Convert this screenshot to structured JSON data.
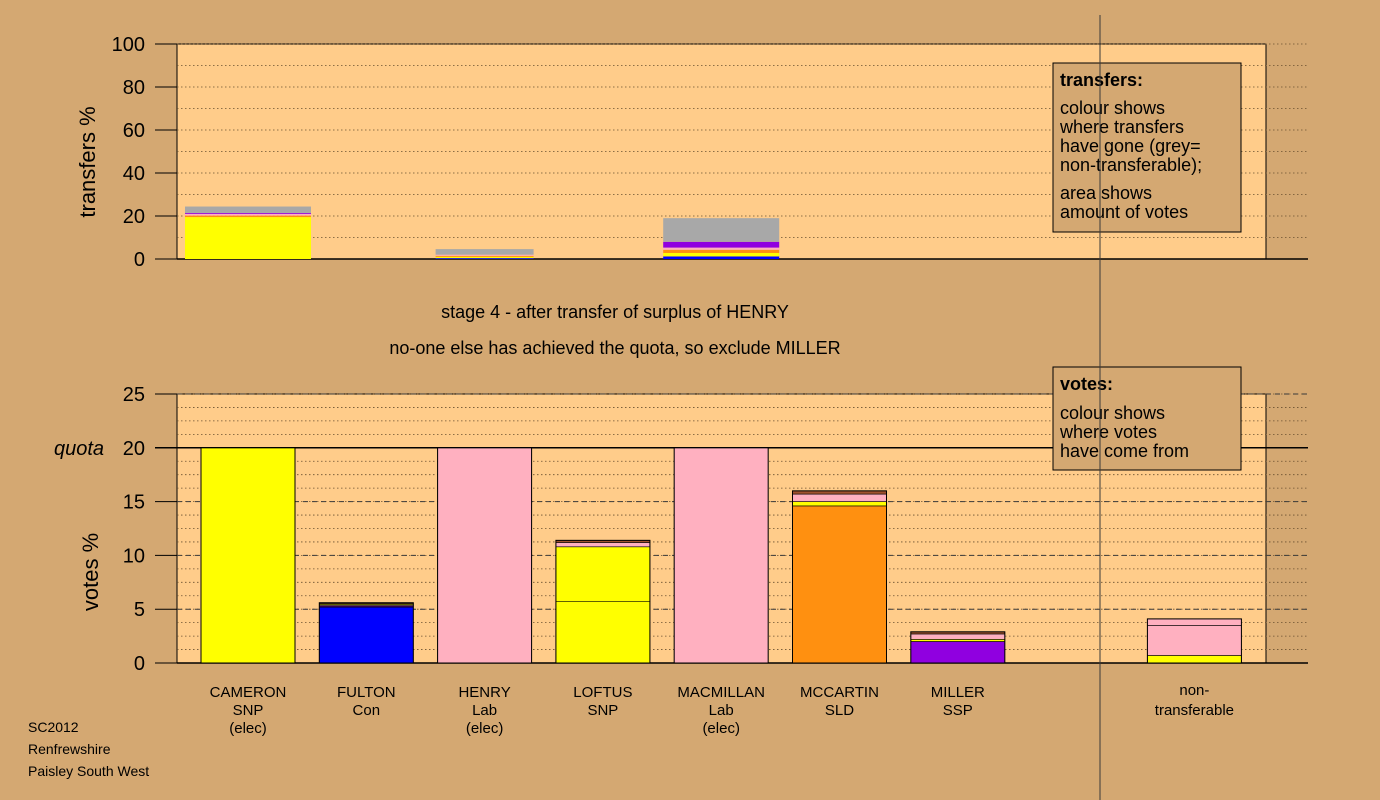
{
  "chart_data": [
    {
      "type": "bar",
      "title": "",
      "ylabel": "transfers %",
      "ylim": [
        0,
        100
      ],
      "yticks": [
        0,
        20,
        40,
        60,
        80,
        100
      ],
      "grid": true,
      "legend_placement": "top-right",
      "legend": {
        "heading": "transfers:",
        "lines1": [
          "colour shows",
          "where transfers",
          "have gone (grey=",
          "non-transferable);"
        ],
        "lines2": [
          "area shows",
          "amount of votes"
        ]
      },
      "bars": [
        {
          "slot": 0,
          "segments": [
            {
              "party": "SNP",
              "value": 19.5
            },
            {
              "party": "SLD",
              "value": 0.7
            },
            {
              "party": "Lab",
              "value": 0.8
            },
            {
              "party": "SSP",
              "value": 0.4
            },
            {
              "party": "non-transferable",
              "value": 3.0
            }
          ]
        },
        {
          "slot": 2,
          "segments": [
            {
              "party": "Con",
              "value": 0.4
            },
            {
              "party": "SNP",
              "value": 0.6
            },
            {
              "party": "SLD",
              "value": 0.5
            },
            {
              "party": "Lab",
              "value": 0.5
            },
            {
              "party": "non-transferable",
              "value": 2.6
            }
          ]
        },
        {
          "slot": 4,
          "segments": [
            {
              "party": "Con",
              "value": 1.2
            },
            {
              "party": "SNP",
              "value": 1.6
            },
            {
              "party": "SLD",
              "value": 1.5
            },
            {
              "party": "Lab",
              "value": 1.0
            },
            {
              "party": "SSP",
              "value": 2.7
            },
            {
              "party": "non-transferable",
              "value": 11.0
            }
          ]
        }
      ]
    },
    {
      "type": "bar",
      "title": "",
      "ylabel": "votes %",
      "ylim": [
        0,
        25
      ],
      "yticks": [
        0,
        5,
        10,
        15,
        20,
        25
      ],
      "quota": 20,
      "quota_label": "quota",
      "grid": true,
      "legend_placement": "top-right",
      "legend": {
        "heading": "votes:",
        "lines1": [
          "colour shows",
          "where votes",
          "have come from"
        ]
      },
      "categories": [
        {
          "name": "CAMERON",
          "party": "SNP",
          "note": "(elec)"
        },
        {
          "name": "FULTON",
          "party": "Con",
          "note": ""
        },
        {
          "name": "HENRY",
          "party": "Lab",
          "note": "(elec)"
        },
        {
          "name": "LOFTUS",
          "party": "SNP",
          "note": ""
        },
        {
          "name": "MACMILLAN",
          "party": "Lab",
          "note": "(elec)"
        },
        {
          "name": "MCCARTIN",
          "party": "SLD",
          "note": ""
        },
        {
          "name": "MILLER",
          "party": "SSP",
          "note": ""
        }
      ],
      "bars": [
        {
          "slot": 0,
          "segments": [
            {
              "party": "SNP",
              "value": 20.0
            }
          ]
        },
        {
          "slot": 1,
          "segments": [
            {
              "party": "Con",
              "value": 5.2
            },
            {
              "party": "SSP",
              "value": 0.1
            },
            {
              "party": "Lab",
              "value": 0.1
            },
            {
              "party": "SNP",
              "value": 0.1
            },
            {
              "party": "Con2",
              "value": 0.1
            }
          ]
        },
        {
          "slot": 2,
          "segments": [
            {
              "party": "Lab",
              "value": 20.0
            }
          ]
        },
        {
          "slot": 3,
          "segments": [
            {
              "party": "SNP",
              "value": 5.7
            },
            {
              "party": "SNP",
              "value": 5.1
            },
            {
              "party": "Lab",
              "value": 0.4
            },
            {
              "party": "Con2",
              "value": 0.2
            }
          ]
        },
        {
          "slot": 4,
          "segments": [
            {
              "party": "Lab",
              "value": 20.0
            }
          ]
        },
        {
          "slot": 5,
          "segments": [
            {
              "party": "SLD",
              "value": 14.6
            },
            {
              "party": "SNP",
              "value": 0.4
            },
            {
              "party": "Lab",
              "value": 0.7
            },
            {
              "party": "Con2",
              "value": 0.3
            }
          ]
        },
        {
          "slot": 6,
          "segments": [
            {
              "party": "SSP",
              "value": 2.0
            },
            {
              "party": "SNP",
              "value": 0.2
            },
            {
              "party": "Lab",
              "value": 0.5
            },
            {
              "party": "Con2",
              "value": 0.2
            }
          ]
        },
        {
          "slot": 8,
          "segments": [
            {
              "party": "SNP",
              "value": 0.7
            },
            {
              "party": "Lab",
              "value": 2.8
            },
            {
              "party": "Lab",
              "value": 0.6
            }
          ]
        }
      ],
      "nontransferable_label": [
        "non-",
        "transferable"
      ]
    }
  ],
  "stage_text": "stage 4 - after transfer of surplus of HENRY",
  "status_text": "no-one else has achieved the quota, so exclude MILLER",
  "footer": [
    "SC2012",
    "Renfrewshire",
    "Paisley South West"
  ],
  "colors": {
    "SNP": "#ffff00",
    "Con": "#0000ff",
    "Con2": "#a0522d",
    "Lab": "#ffb0c0",
    "SLD": "#ff9010",
    "SSP": "#9000e0",
    "non-transferable": "#a8a8a8",
    "plot_bg": "#ffcc8a",
    "page_bg": "#d4a872",
    "legend_bg": "#d4a872"
  }
}
